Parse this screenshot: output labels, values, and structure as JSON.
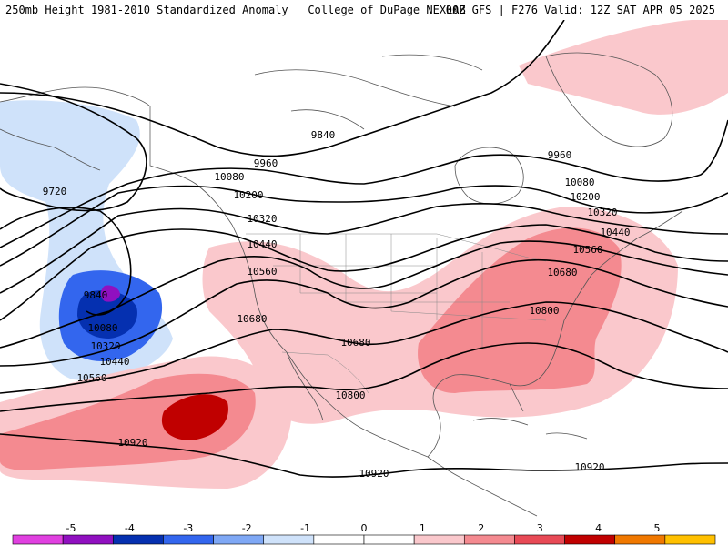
{
  "header": {
    "left": "250mb Height 1981-2010 Standardized Anomaly | College of DuPage NEXLAB",
    "right": "00Z GFS | F276 Valid: 12Z SAT APR 05 2025"
  },
  "colorbar": {
    "ticks": [
      "-5",
      "-4",
      "-3",
      "-2",
      "-1",
      "0",
      "1",
      "2",
      "3",
      "4",
      "5"
    ],
    "colors": [
      "#e040e0",
      "#9010c0",
      "#0530b0",
      "#3366ee",
      "#7fa8f5",
      "#cfe2fa",
      "#ffffff",
      "#ffffff",
      "#fac8cc",
      "#f48a90",
      "#e84a56",
      "#c00000",
      "#f07800",
      "#ffc000"
    ]
  },
  "contour_labels": [
    {
      "name": "contour-label-9720",
      "text": "9720"
    },
    {
      "name": "contour-label-9840-west",
      "text": "9840"
    },
    {
      "name": "contour-label-10080-west",
      "text": "10080"
    },
    {
      "name": "contour-label-10320-west",
      "text": "10320"
    },
    {
      "name": "contour-label-10440-west",
      "text": "10440"
    },
    {
      "name": "contour-label-10560-west",
      "text": "10560"
    },
    {
      "name": "contour-label-9840-north",
      "text": "9840"
    },
    {
      "name": "contour-label-9960-west",
      "text": "9960"
    },
    {
      "name": "contour-label-10080-pnw",
      "text": "10080"
    },
    {
      "name": "contour-label-10200-pnw",
      "text": "10200"
    },
    {
      "name": "contour-label-10320-pnw",
      "text": "10320"
    },
    {
      "name": "contour-label-10440-pnw",
      "text": "10440"
    },
    {
      "name": "contour-label-10560-pac",
      "text": "10560"
    },
    {
      "name": "contour-label-10680-pac",
      "text": "10680"
    },
    {
      "name": "contour-label-10680-tx",
      "text": "10680"
    },
    {
      "name": "contour-label-10800-mx",
      "text": "10800"
    },
    {
      "name": "contour-label-10920-pac",
      "text": "10920"
    },
    {
      "name": "contour-label-10920-south",
      "text": "10920"
    },
    {
      "name": "contour-label-10920-east",
      "text": "10920"
    },
    {
      "name": "contour-label-9960-east",
      "text": "9960"
    },
    {
      "name": "contour-label-10080-east",
      "text": "10080"
    },
    {
      "name": "contour-label-10200-east",
      "text": "10200"
    },
    {
      "name": "contour-label-10320-east",
      "text": "10320"
    },
    {
      "name": "contour-label-10440-east",
      "text": "10440"
    },
    {
      "name": "contour-label-10560-east",
      "text": "10560"
    },
    {
      "name": "contour-label-10680-east",
      "text": "10680"
    },
    {
      "name": "contour-label-10800-east",
      "text": "10800"
    }
  ]
}
